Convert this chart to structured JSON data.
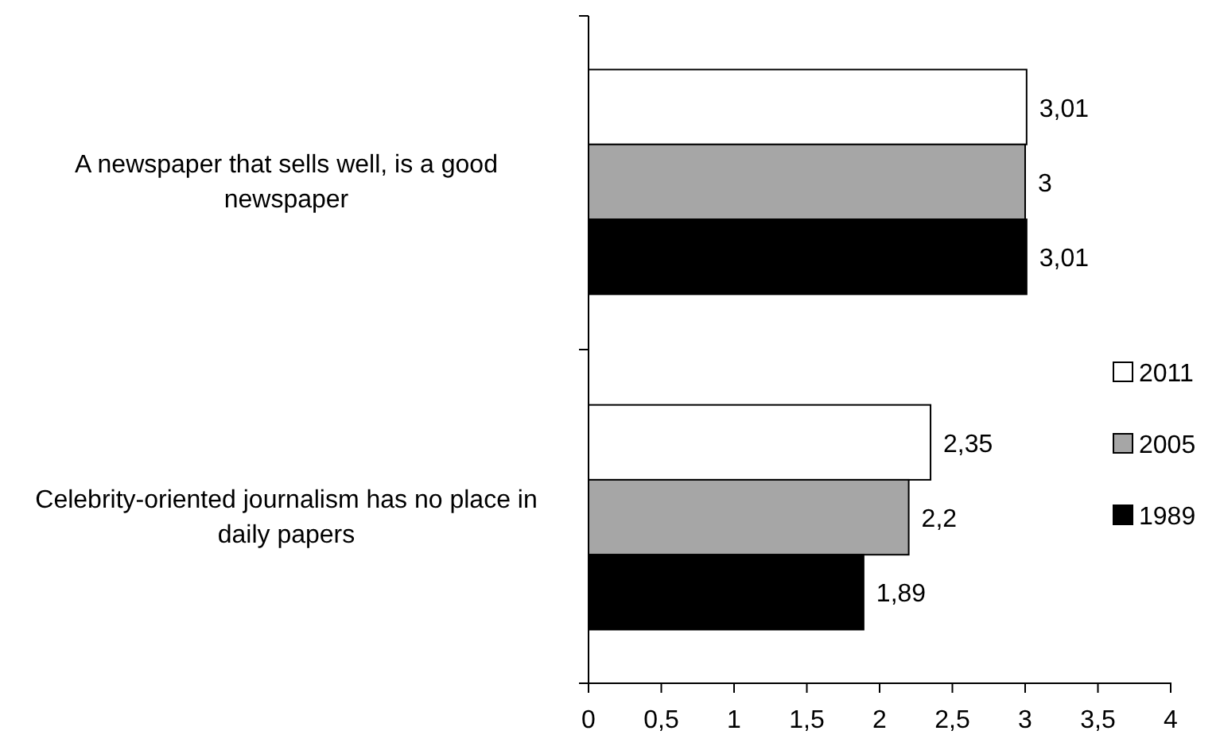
{
  "chart_data": {
    "type": "bar",
    "orientation": "horizontal",
    "categories": [
      "A newspaper that sells well, is a good newspaper",
      "Celebrity-oriented journalism has no place in daily papers"
    ],
    "series": [
      {
        "name": "2011",
        "color": "#ffffff",
        "values": [
          3.01,
          2.35
        ],
        "value_labels": [
          "3,01",
          "2,35"
        ]
      },
      {
        "name": "2005",
        "color": "#a6a6a6",
        "values": [
          3,
          2.2
        ],
        "value_labels": [
          "3",
          "2,2"
        ]
      },
      {
        "name": "1989",
        "color": "#000000",
        "values": [
          3.01,
          1.89
        ],
        "value_labels": [
          "3,01",
          "1,89"
        ]
      }
    ],
    "xlim": [
      0,
      4
    ],
    "xticks": [
      0,
      {
        "value": 0.5,
        "label": "0,5"
      },
      1,
      {
        "value": 1.5,
        "label": "1,5"
      },
      2,
      {
        "value": 2.5,
        "label": "2,5"
      },
      3,
      {
        "value": 3.5,
        "label": "3,5"
      },
      4
    ],
    "grid": false,
    "legend": "right"
  }
}
